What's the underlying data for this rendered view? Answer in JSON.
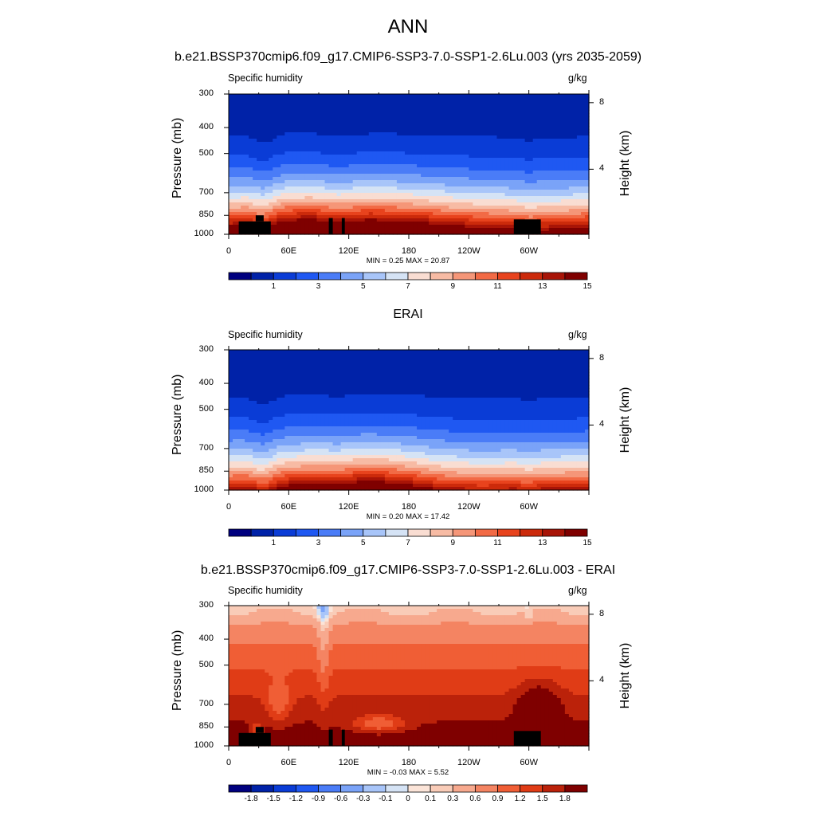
{
  "title": "ANN",
  "panels": [
    {
      "id": "model",
      "title": "b.e21.BSSP370cmip6.f09_g17.CMIP6-SSP3-7.0-SSP1-2.6Lu.003 (yrs 2035-2059)",
      "left_label": "Specific humidity",
      "right_label": "g/kg",
      "minmax": "MIN =   0.25  MAX =  20.87",
      "cb_labels": [
        "1",
        "3",
        "5",
        "7",
        "9",
        "11",
        "13",
        "15"
      ]
    },
    {
      "id": "obs",
      "title": "ERAI",
      "left_label": "Specific humidity",
      "right_label": "g/kg",
      "minmax": "MIN =   0.20  MAX =  17.42",
      "cb_labels": [
        "1",
        "3",
        "5",
        "7",
        "9",
        "11",
        "13",
        "15"
      ]
    },
    {
      "id": "diff",
      "title": "b.e21.BSSP370cmip6.f09_g17.CMIP6-SSP3-7.0-SSP1-2.6Lu.003 - ERAI",
      "left_label": "Specific humidity",
      "right_label": "g/kg",
      "minmax": "MIN =  -0.03  MAX =   5.52",
      "cb_labels": [
        "-1.8",
        "-1.5",
        "-1.2",
        "-0.9",
        "-0.6",
        "-0.3",
        "-0.1",
        "0",
        "0.1",
        "0.3",
        "0.6",
        "0.9",
        "1.2",
        "1.5",
        "1.8"
      ]
    }
  ],
  "axes": {
    "ylabel": "Pressure (mb)",
    "y2label": "Height (km)",
    "pressure_ticks": [
      "300",
      "400",
      "500",
      "700",
      "850",
      "1000"
    ],
    "height_ticks": [
      "8",
      "4"
    ],
    "lon_ticks": [
      "0",
      "60E",
      "120E",
      "180",
      "120W",
      "60W"
    ]
  },
  "colors": {
    "abs_scale": [
      "#00007f",
      "#0022a8",
      "#0a3cd6",
      "#1f58f2",
      "#4a7cf7",
      "#7aa3f8",
      "#a8c5f9",
      "#d5e3f5",
      "#f9ddd2",
      "#f7bba4",
      "#f59678",
      "#f26a45",
      "#e8431d",
      "#cc2a0b",
      "#a81407",
      "#7f0000"
    ],
    "diff_scale": [
      "#00007f",
      "#0022a8",
      "#0a3cd6",
      "#1f58f2",
      "#4a7cf7",
      "#7aa3f8",
      "#a8c5f9",
      "#d5e3f5",
      "#fbe4d8",
      "#f9ccb8",
      "#f7a98e",
      "#f48462",
      "#f05e35",
      "#e03c16",
      "#bb220a",
      "#7f0000"
    ]
  },
  "chart_data": [
    {
      "type": "heatmap",
      "variable": "Specific humidity",
      "units": "g/kg",
      "x_axis": "Longitude",
      "xlim": [
        0,
        360
      ],
      "y_axis": "Pressure (mb)",
      "ylim": [
        1000,
        300
      ],
      "y2_axis": "Height (km)",
      "min": 0.25,
      "max": 20.87,
      "contour_levels": [
        0,
        1,
        2,
        3,
        4,
        5,
        6,
        7,
        8,
        9,
        10,
        11,
        12,
        13,
        14,
        15,
        16
      ],
      "colorbar_ticks": [
        1,
        3,
        5,
        7,
        9,
        11,
        13,
        15
      ]
    },
    {
      "type": "heatmap",
      "variable": "Specific humidity",
      "units": "g/kg",
      "x_axis": "Longitude",
      "xlim": [
        0,
        360
      ],
      "y_axis": "Pressure (mb)",
      "ylim": [
        1000,
        300
      ],
      "y2_axis": "Height (km)",
      "min": 0.2,
      "max": 17.42,
      "contour_levels": [
        0,
        1,
        2,
        3,
        4,
        5,
        6,
        7,
        8,
        9,
        10,
        11,
        12,
        13,
        14,
        15,
        16
      ],
      "colorbar_ticks": [
        1,
        3,
        5,
        7,
        9,
        11,
        13,
        15
      ]
    },
    {
      "type": "heatmap",
      "variable": "Specific humidity",
      "units": "g/kg",
      "x_axis": "Longitude",
      "xlim": [
        0,
        360
      ],
      "y_axis": "Pressure (mb)",
      "ylim": [
        1000,
        300
      ],
      "y2_axis": "Height (km)",
      "min": -0.03,
      "max": 5.52,
      "contour_levels": [
        -1.8,
        -1.5,
        -1.2,
        -0.9,
        -0.6,
        -0.3,
        -0.1,
        0,
        0.1,
        0.3,
        0.6,
        0.9,
        1.2,
        1.5,
        1.8
      ],
      "colorbar_ticks": [
        -1.8,
        -1.5,
        -1.2,
        -0.9,
        -0.6,
        -0.3,
        -0.1,
        0,
        0.1,
        0.3,
        0.6,
        0.9,
        1.2,
        1.5,
        1.8
      ]
    }
  ]
}
